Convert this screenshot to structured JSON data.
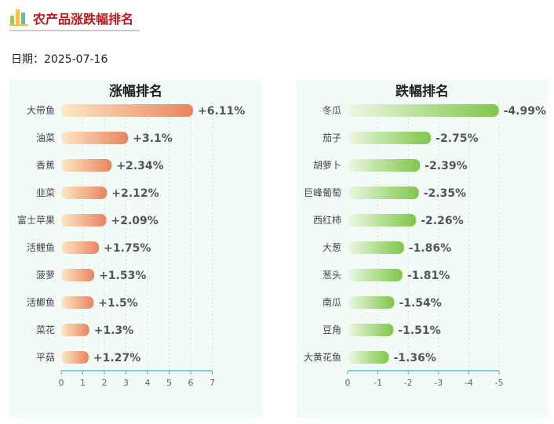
{
  "page": {
    "title": "农产品涨跌幅排名",
    "date_text": "日期：2025-07-16"
  },
  "colors": {
    "title": "#c0161b",
    "rise_start": "#fde8c4",
    "rise_end": "#e9845f",
    "fall_start": "#eef8e4",
    "fall_end": "#7fc64a",
    "axis": "#59c3d8",
    "panel_bg": "#f3fbf8"
  },
  "chart_data": [
    {
      "type": "bar",
      "orientation": "horizontal",
      "title": "涨幅排名",
      "categories": [
        "大带鱼",
        "油菜",
        "香蕉",
        "韭菜",
        "富士苹果",
        "活鲤鱼",
        "菠萝",
        "活鲫鱼",
        "菜花",
        "平菇"
      ],
      "values": [
        6.11,
        3.1,
        2.34,
        2.12,
        2.09,
        1.75,
        1.53,
        1.5,
        1.3,
        1.27
      ],
      "labels": [
        "+6.11%",
        "+3.1%",
        "+2.34%",
        "+2.12%",
        "+2.09%",
        "+1.75%",
        "+1.53%",
        "+1.5%",
        "+1.3%",
        "+1.27%"
      ],
      "xlim": [
        0,
        7
      ],
      "xticks": [
        "0",
        "1",
        "2",
        "3",
        "4",
        "5",
        "6",
        "7"
      ],
      "grid": "vertical dashed"
    },
    {
      "type": "bar",
      "orientation": "horizontal",
      "title": "跌幅排名",
      "categories": [
        "冬瓜",
        "茄子",
        "胡萝卜",
        "巨峰葡萄",
        "西红柿",
        "大葱",
        "葱头",
        "南瓜",
        "豆角",
        "大黄花鱼"
      ],
      "values": [
        -4.99,
        -2.75,
        -2.39,
        -2.35,
        -2.26,
        -1.86,
        -1.81,
        -1.54,
        -1.51,
        -1.36
      ],
      "labels": [
        "-4.99%",
        "-2.75%",
        "-2.39%",
        "-2.35%",
        "-2.26%",
        "-1.86%",
        "-1.81%",
        "-1.54%",
        "-1.51%",
        "-1.36%"
      ],
      "xlim": [
        0,
        -5
      ],
      "xticks": [
        "0",
        "-1",
        "-2",
        "-3",
        "-4",
        "-5"
      ],
      "grid": "vertical dashed"
    }
  ]
}
